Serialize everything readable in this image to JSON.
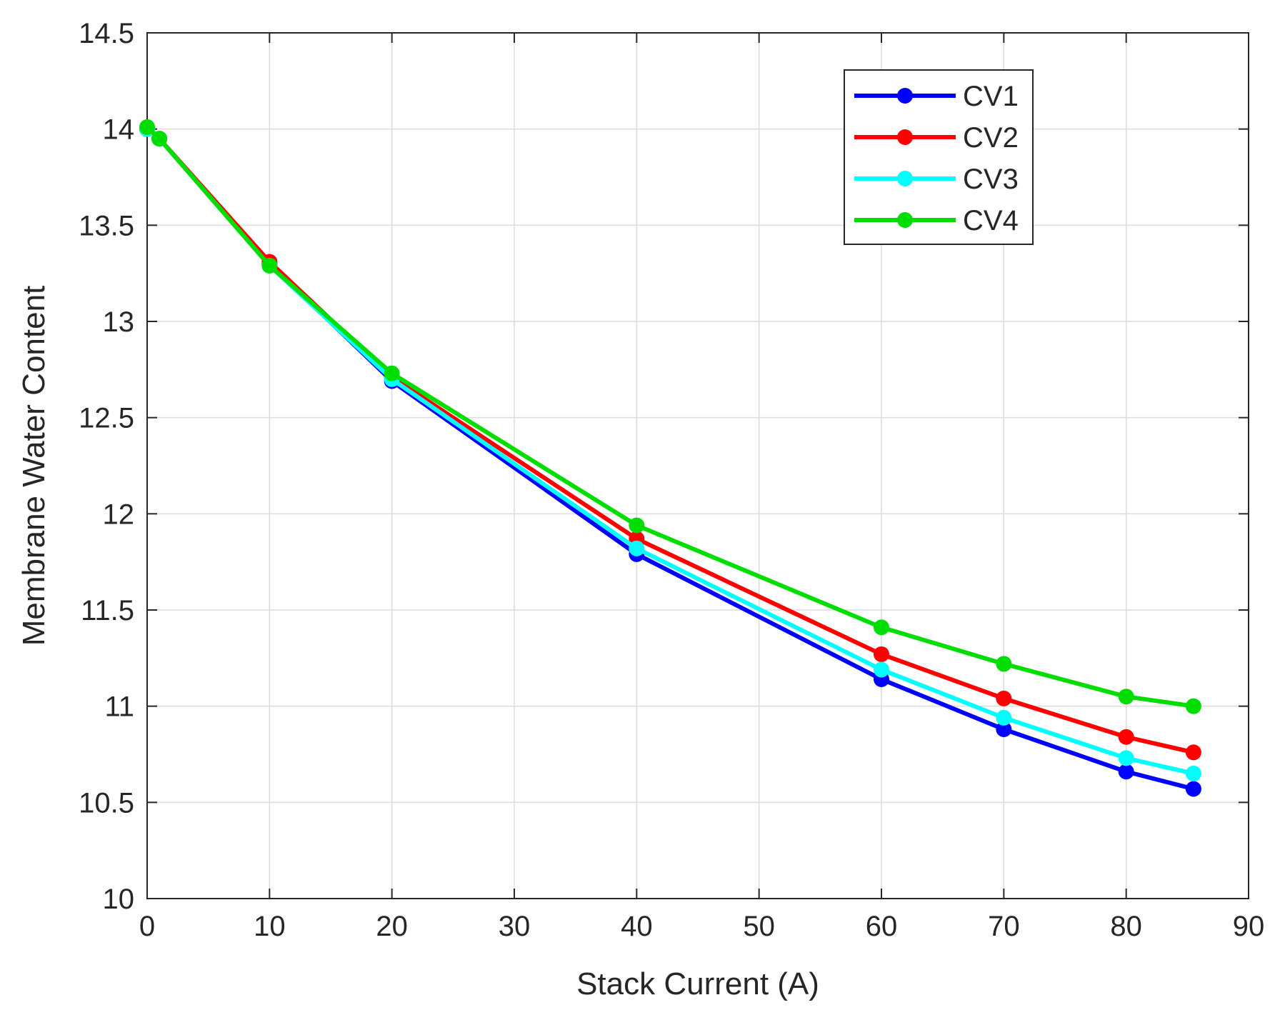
{
  "chart_data": {
    "type": "line",
    "title": "",
    "xlabel": "Stack Current (A)",
    "ylabel": "Membrane Water Content",
    "xlim": [
      0,
      90
    ],
    "ylim": [
      10,
      14.5
    ],
    "xticks": [
      0,
      10,
      20,
      30,
      40,
      50,
      60,
      70,
      80,
      90
    ],
    "yticks": [
      10,
      10.5,
      11,
      11.5,
      12,
      12.5,
      13,
      13.5,
      14,
      14.5
    ],
    "xtick_labels": [
      "0",
      "10",
      "20",
      "30",
      "40",
      "50",
      "60",
      "70",
      "80",
      "90"
    ],
    "ytick_labels": [
      "10",
      "10.5",
      "11",
      "11.5",
      "12",
      "12.5",
      "13",
      "13.5",
      "14",
      "14.5"
    ],
    "grid": true,
    "legend_position": "top-right",
    "series": [
      {
        "name": "CV1",
        "color": "#0000ff",
        "x": [
          0,
          1,
          10,
          20,
          40,
          60,
          70,
          80,
          85.5
        ],
        "y": [
          14.0,
          13.95,
          13.3,
          12.69,
          11.79,
          11.14,
          10.88,
          10.66,
          10.57
        ]
      },
      {
        "name": "CV2",
        "color": "#ff0000",
        "x": [
          0,
          1,
          10,
          20,
          40,
          60,
          70,
          80,
          85.5
        ],
        "y": [
          14.0,
          13.95,
          13.31,
          12.71,
          11.87,
          11.27,
          11.04,
          10.84,
          10.76
        ]
      },
      {
        "name": "CV3",
        "color": "#00ffff",
        "x": [
          0,
          1,
          10,
          20,
          40,
          60,
          70,
          80,
          85.5
        ],
        "y": [
          14.0,
          13.95,
          13.29,
          12.7,
          11.82,
          11.19,
          10.94,
          10.73,
          10.65
        ]
      },
      {
        "name": "CV4",
        "color": "#00dd00",
        "x": [
          0,
          1,
          10,
          20,
          40,
          60,
          70,
          80,
          85.5
        ],
        "y": [
          14.01,
          13.95,
          13.29,
          12.73,
          11.94,
          11.41,
          11.22,
          11.05,
          11.0
        ]
      }
    ]
  }
}
